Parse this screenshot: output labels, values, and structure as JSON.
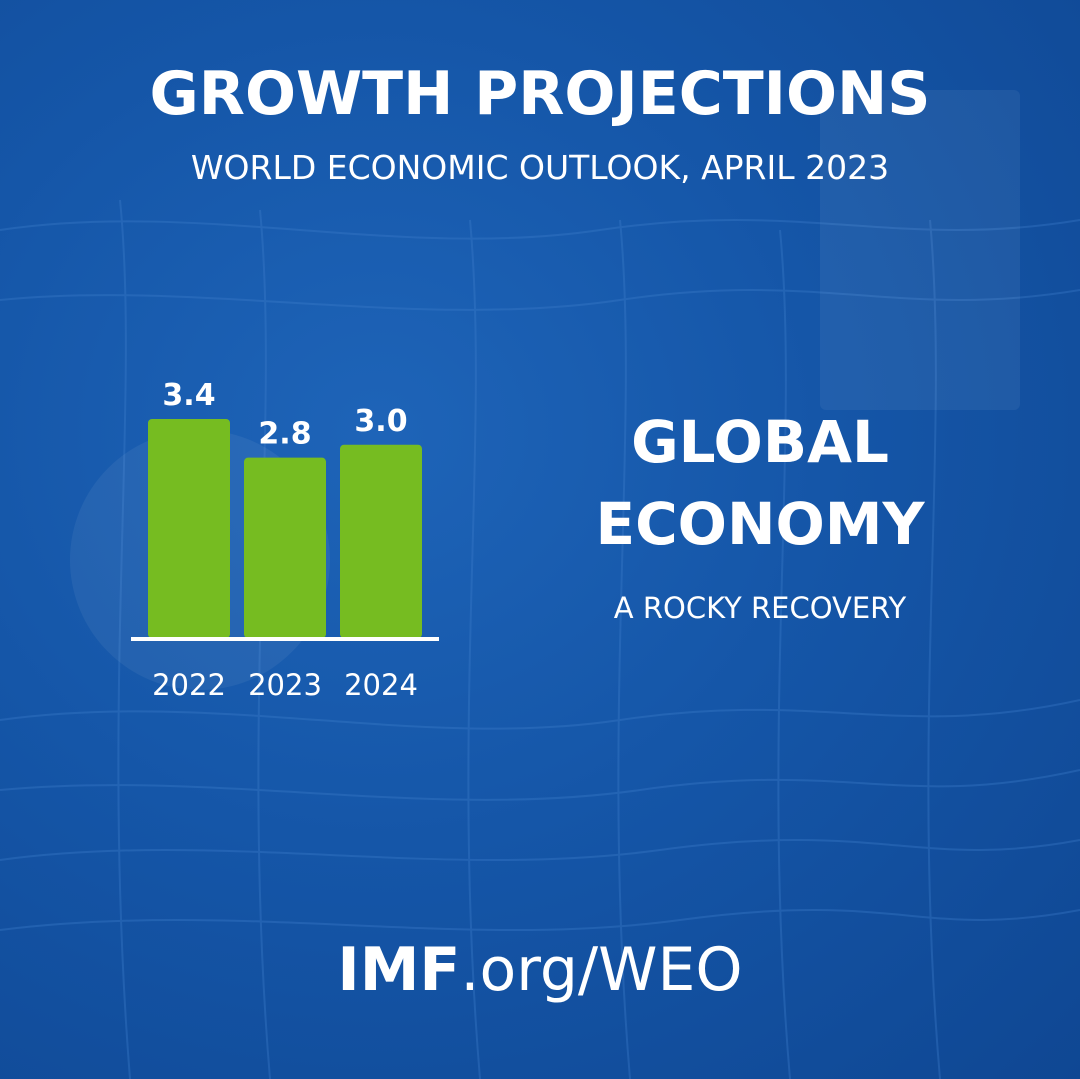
{
  "header": {
    "title": "GROWTH PROJECTIONS",
    "subtitle": "WORLD ECONOMIC OUTLOOK, APRIL 2023"
  },
  "chart_data": {
    "type": "bar",
    "categories": [
      "2022",
      "2023",
      "2024"
    ],
    "values": [
      3.4,
      2.8,
      3.0
    ],
    "data_labels": [
      "3.4",
      "2.8",
      "3.0"
    ],
    "ylim": [
      0,
      3.4
    ],
    "grid": false,
    "bar_color": "#76bc21"
  },
  "headline": {
    "line1": "GLOBAL",
    "line2": "ECONOMY",
    "tagline": "A ROCKY RECOVERY"
  },
  "footer": {
    "domain_strong": "IMF",
    "domain_rest": ".org/WEO"
  },
  "colors": {
    "background": "#1556a8",
    "accent": "#76bc21",
    "text": "#ffffff"
  }
}
